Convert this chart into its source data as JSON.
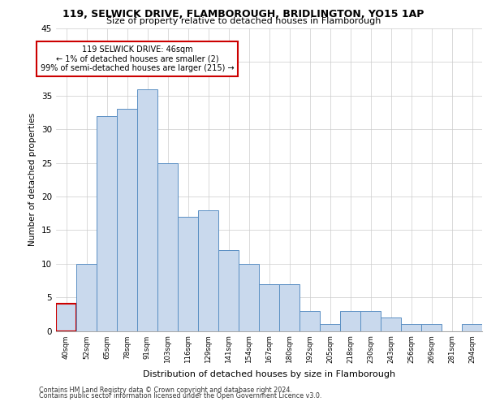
{
  "title_line1": "119, SELWICK DRIVE, FLAMBOROUGH, BRIDLINGTON, YO15 1AP",
  "title_line2": "Size of property relative to detached houses in Flamborough",
  "xlabel": "Distribution of detached houses by size in Flamborough",
  "ylabel": "Number of detached properties",
  "categories": [
    "40sqm",
    "52sqm",
    "65sqm",
    "78sqm",
    "91sqm",
    "103sqm",
    "116sqm",
    "129sqm",
    "141sqm",
    "154sqm",
    "167sqm",
    "180sqm",
    "192sqm",
    "205sqm",
    "218sqm",
    "230sqm",
    "243sqm",
    "256sqm",
    "269sqm",
    "281sqm",
    "294sqm"
  ],
  "values": [
    4,
    10,
    32,
    33,
    36,
    25,
    17,
    18,
    12,
    10,
    7,
    7,
    3,
    1,
    3,
    3,
    2,
    1,
    1,
    0,
    1
  ],
  "bar_facecolor": "#c9d9ed",
  "bar_edgecolor": "#5a8fc3",
  "highlight_bar_index": 0,
  "highlight_bar_edgecolor": "#cc0000",
  "annotation_box_text": "119 SELWICK DRIVE: 46sqm\n← 1% of detached houses are smaller (2)\n99% of semi-detached houses are larger (215) →",
  "annotation_box_edgecolor": "#cc0000",
  "ylim": [
    0,
    45
  ],
  "yticks": [
    0,
    5,
    10,
    15,
    20,
    25,
    30,
    35,
    40,
    45
  ],
  "footer_line1": "Contains HM Land Registry data © Crown copyright and database right 2024.",
  "footer_line2": "Contains public sector information licensed under the Open Government Licence v3.0.",
  "background_color": "#ffffff",
  "grid_color": "#cccccc"
}
